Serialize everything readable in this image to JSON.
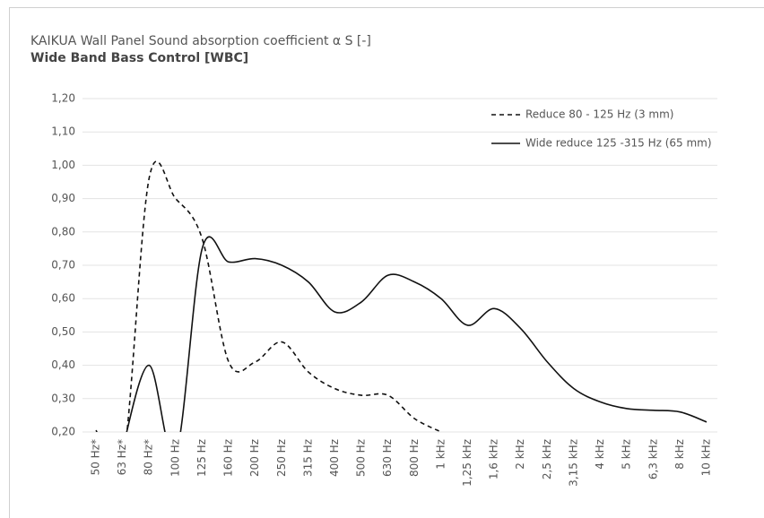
{
  "chart_data": {
    "type": "line",
    "title": "KAIKUA Wall Panel Sound absorption coefficient   α S [-]",
    "subtitle": "Wide Band Bass Control [WBC]",
    "categories": [
      "50 Hz*",
      "63 Hz*",
      "80 Hz*",
      "100 Hz",
      "125 Hz",
      "160 Hz",
      "200 Hz",
      "250 Hz",
      "315 Hz",
      "400 Hz",
      "500 Hz",
      "630 Hz",
      "800 Hz",
      "1  kHz",
      "1,25 kHz",
      "1,6 kHz",
      "2 kHz",
      "2,5 kHz",
      "3,15 kHz",
      "4 kHz",
      "5 kHz",
      "6,3 kHz",
      "8 kHz",
      "10 kHz"
    ],
    "series": [
      {
        "name": "Reduce 80 - 125 Hz (3 mm)",
        "color": "#111111",
        "dash": true,
        "values": [
          0.205,
          0.1,
          0.96,
          0.9,
          0.78,
          0.41,
          0.41,
          0.47,
          0.38,
          0.33,
          0.31,
          0.31,
          0.24,
          0.2,
          null,
          null,
          null,
          null,
          null,
          null,
          null,
          null,
          null,
          null
        ]
      },
      {
        "name": "Wide reduce 125 -315 Hz (65 mm)",
        "color": "#111111",
        "dash": false,
        "values": [
          null,
          0.15,
          0.4,
          0.13,
          0.75,
          0.71,
          0.72,
          0.7,
          0.65,
          0.56,
          0.59,
          0.67,
          0.65,
          0.6,
          0.52,
          0.57,
          0.51,
          0.41,
          0.33,
          0.29,
          0.27,
          0.265,
          0.26,
          0.23
        ]
      }
    ],
    "ylim": [
      0.2,
      1.2
    ],
    "yticks": [
      {
        "value": 0.2,
        "label": "0,20"
      },
      {
        "value": 0.3,
        "label": "0,30"
      },
      {
        "value": 0.4,
        "label": "0,40"
      },
      {
        "value": 0.5,
        "label": "0,50"
      },
      {
        "value": 0.6,
        "label": "0,60"
      },
      {
        "value": 0.7,
        "label": "0,70"
      },
      {
        "value": 0.8,
        "label": "0,80"
      },
      {
        "value": 0.9,
        "label": "0,90"
      },
      {
        "value": 1.0,
        "label": "1,00"
      },
      {
        "value": 1.1,
        "label": "1,10"
      },
      {
        "value": 1.2,
        "label": "1,20"
      }
    ],
    "grid": true,
    "legend": "upper right"
  }
}
